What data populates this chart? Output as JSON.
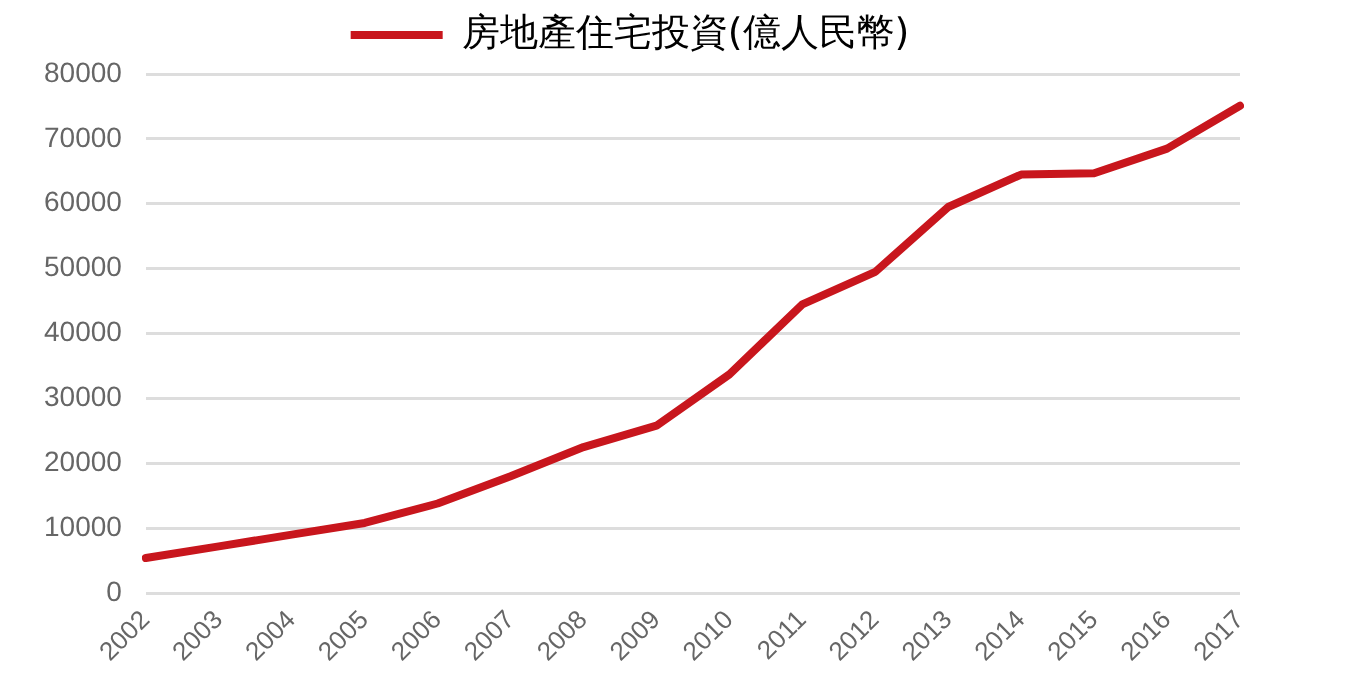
{
  "chart_data": {
    "type": "line",
    "categories": [
      "2002",
      "2003",
      "2004",
      "2005",
      "2006",
      "2007",
      "2008",
      "2009",
      "2010",
      "2011",
      "2012",
      "2013",
      "2014",
      "2015",
      "2016",
      "2017"
    ],
    "series": [
      {
        "name": "房地產住宅投資(億人民幣)",
        "color": "#c8161d",
        "values": [
          5400,
          7200,
          9000,
          10800,
          13800,
          18000,
          22500,
          25800,
          33700,
          44500,
          49500,
          59500,
          64500,
          64700,
          68500,
          75100
        ]
      }
    ],
    "ylim": [
      0,
      80000
    ],
    "yticks": [
      0,
      10000,
      20000,
      30000,
      40000,
      50000,
      60000,
      70000,
      80000
    ],
    "grid": "y",
    "legend": "top",
    "marker": "none",
    "line_style": "solid"
  }
}
